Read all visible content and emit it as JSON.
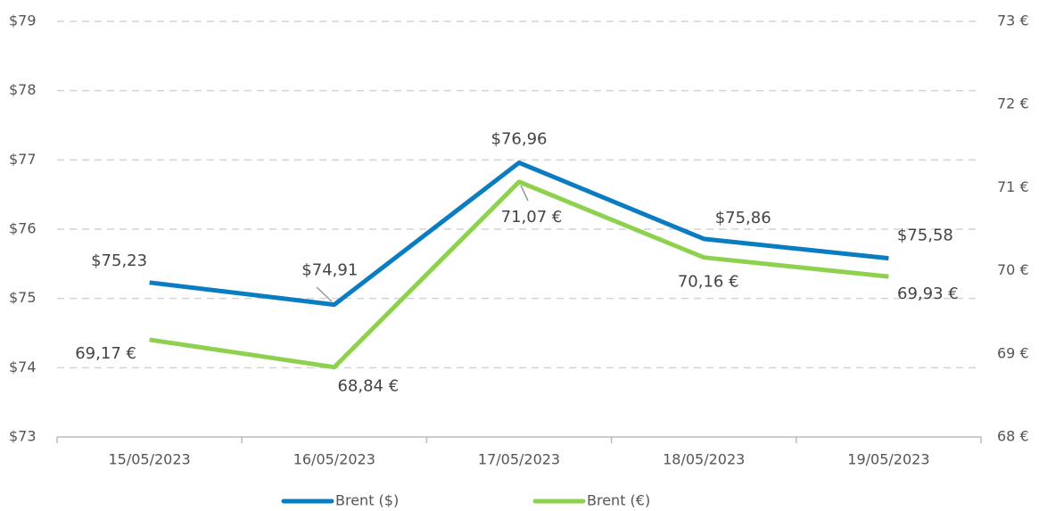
{
  "chart_data": {
    "type": "line",
    "categories": [
      "15/05/2023",
      "16/05/2023",
      "17/05/2023",
      "18/05/2023",
      "19/05/2023"
    ],
    "series": [
      {
        "name": "Brent ($)",
        "color": "#0a7cc1",
        "values": [
          75.23,
          74.91,
          76.96,
          75.86,
          75.58
        ],
        "value_labels": [
          "$75,23",
          "$74,91",
          "$76,96",
          "$75,86",
          "$75,58"
        ]
      },
      {
        "name": "Brent (€)",
        "color": "#8ed14f",
        "axis": "y2",
        "values": [
          69.17,
          68.84,
          71.07,
          70.16,
          69.93
        ],
        "value_labels": [
          "69,17 €",
          "68,84 €",
          "71,07 €",
          "70,16 €",
          "69,93 €"
        ]
      }
    ],
    "ylim": [
      73,
      79
    ],
    "yticks": [
      {
        "value": 73,
        "label": "$73"
      },
      {
        "value": 74,
        "label": "$74"
      },
      {
        "value": 75,
        "label": "$75"
      },
      {
        "value": 76,
        "label": "$76"
      },
      {
        "value": 77,
        "label": "$77"
      },
      {
        "value": 78,
        "label": "$78"
      },
      {
        "value": 79,
        "label": "$79"
      }
    ],
    "y2lim": [
      68,
      73
    ],
    "y2ticks": [
      {
        "value": 68,
        "label": "68 €"
      },
      {
        "value": 69,
        "label": "69 €"
      },
      {
        "value": 70,
        "label": "70 €"
      },
      {
        "value": 71,
        "label": "71 €"
      },
      {
        "value": 72,
        "label": "72 €"
      },
      {
        "value": 73,
        "label": "73 €"
      }
    ],
    "grid": true,
    "legend": "bottom"
  }
}
